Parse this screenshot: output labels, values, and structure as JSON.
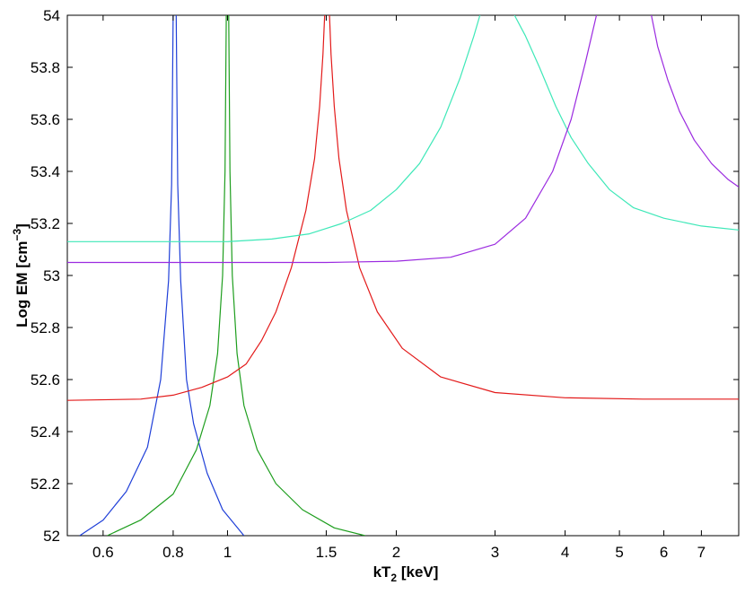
{
  "chart_data": {
    "type": "line",
    "title": "",
    "xlabel": {
      "main": "kT",
      "sub": "2",
      "rest": " [keV]"
    },
    "ylabel": {
      "main": "Log EM [cm",
      "sup": "−3",
      "rest": "]"
    },
    "xscale": "log",
    "xlim": [
      0.518,
      8.16
    ],
    "ylim": [
      52,
      54
    ],
    "grid": false,
    "legend": "none",
    "xticks": [
      {
        "value": 0.6,
        "label": "0.6"
      },
      {
        "value": 0.8,
        "label": "0.8"
      },
      {
        "value": 1,
        "label": "1"
      },
      {
        "value": 1.5,
        "label": "1.5"
      },
      {
        "value": 2,
        "label": "2"
      },
      {
        "value": 3,
        "label": "3"
      },
      {
        "value": 4,
        "label": "4"
      },
      {
        "value": 5,
        "label": "5"
      },
      {
        "value": 6,
        "label": "6"
      },
      {
        "value": 7,
        "label": "7"
      }
    ],
    "yticks": [
      {
        "value": 52,
        "label": "52"
      },
      {
        "value": 52.2,
        "label": "52.2"
      },
      {
        "value": 52.4,
        "label": "52.4"
      },
      {
        "value": 52.6,
        "label": "52.6"
      },
      {
        "value": 52.8,
        "label": "52.8"
      },
      {
        "value": 53,
        "label": "53"
      },
      {
        "value": 53.2,
        "label": "53.2"
      },
      {
        "value": 53.4,
        "label": "53.4"
      },
      {
        "value": 53.6,
        "label": "53.6"
      },
      {
        "value": 53.8,
        "label": "53.8"
      },
      {
        "value": 54,
        "label": "54"
      }
    ],
    "series": [
      {
        "color": "#1f3fd8",
        "segments": [
          {
            "x": [
              0.545,
              0.6,
              0.66,
              0.72,
              0.76,
              0.785,
              0.795,
              0.8
            ],
            "y": [
              52.0,
              52.06,
              52.17,
              52.34,
              52.6,
              52.98,
              53.35,
              54.0
            ]
          },
          {
            "x": [
              0.81,
              0.815,
              0.825,
              0.845,
              0.87,
              0.92,
              0.98,
              1.07
            ],
            "y": [
              54.0,
              53.35,
              52.98,
              52.6,
              52.43,
              52.24,
              52.1,
              52.0
            ]
          }
        ]
      },
      {
        "color": "#1e9e1e",
        "segments": [
          {
            "x": [
              0.61,
              0.7,
              0.8,
              0.88,
              0.93,
              0.96,
              0.98,
              0.99,
              0.995
            ],
            "y": [
              52.0,
              52.06,
              52.16,
              52.33,
              52.5,
              52.7,
              53.0,
              53.4,
              54.0
            ]
          },
          {
            "x": [
              1.005,
              1.01,
              1.02,
              1.04,
              1.07,
              1.13,
              1.22,
              1.36,
              1.55,
              1.76
            ],
            "y": [
              54.0,
              53.4,
              53.0,
              52.7,
              52.5,
              52.33,
              52.2,
              52.1,
              52.03,
              52.0
            ]
          }
        ]
      },
      {
        "color": "#e31a1a",
        "segments": [
          {
            "x": [
              0.518,
              0.7,
              0.8,
              0.9,
              1.0,
              1.08,
              1.15,
              1.22,
              1.3,
              1.38,
              1.43,
              1.46,
              1.48,
              1.49
            ],
            "y": [
              52.52,
              52.525,
              52.54,
              52.57,
              52.61,
              52.66,
              52.75,
              52.86,
              53.03,
              53.25,
              53.45,
              53.65,
              53.85,
              54.0
            ]
          },
          {
            "x": [
              1.52,
              1.53,
              1.55,
              1.58,
              1.63,
              1.72,
              1.85,
              2.05,
              2.4,
              3.0,
              4.0,
              5.5,
              8.16
            ],
            "y": [
              54.0,
              53.85,
              53.65,
              53.45,
              53.25,
              53.03,
              52.86,
              52.72,
              52.61,
              52.55,
              52.53,
              52.525,
              52.525
            ]
          }
        ]
      },
      {
        "color": "#3ee8b8",
        "segments": [
          {
            "x": [
              0.518,
              1.0,
              1.2,
              1.4,
              1.6,
              1.8,
              2.0,
              2.2,
              2.4,
              2.6,
              2.75,
              2.82
            ],
            "y": [
              53.13,
              53.13,
              53.14,
              53.16,
              53.2,
              53.25,
              53.33,
              53.43,
              53.57,
              53.76,
              53.92,
              54.0
            ]
          },
          {
            "x": [
              3.25,
              3.4,
              3.6,
              3.85,
              4.1,
              4.4,
              4.8,
              5.3,
              6.0,
              7.0,
              8.16
            ],
            "y": [
              54.0,
              53.92,
              53.8,
              53.65,
              53.53,
              53.43,
              53.33,
              53.26,
              53.22,
              53.19,
              53.175
            ]
          }
        ]
      },
      {
        "color": "#9b2be0",
        "segments": [
          {
            "x": [
              0.518,
              1.5,
              2.0,
              2.5,
              3.0,
              3.4,
              3.8,
              4.1,
              4.35,
              4.55
            ],
            "y": [
              53.05,
              53.05,
              53.055,
              53.07,
              53.12,
              53.22,
              53.4,
              53.6,
              53.82,
              54.0
            ]
          },
          {
            "x": [
              5.7,
              5.85,
              6.1,
              6.4,
              6.8,
              7.3,
              7.8,
              8.16
            ],
            "y": [
              54.0,
              53.88,
              53.75,
              53.63,
              53.52,
              53.43,
              53.37,
              53.34
            ]
          }
        ]
      }
    ]
  }
}
